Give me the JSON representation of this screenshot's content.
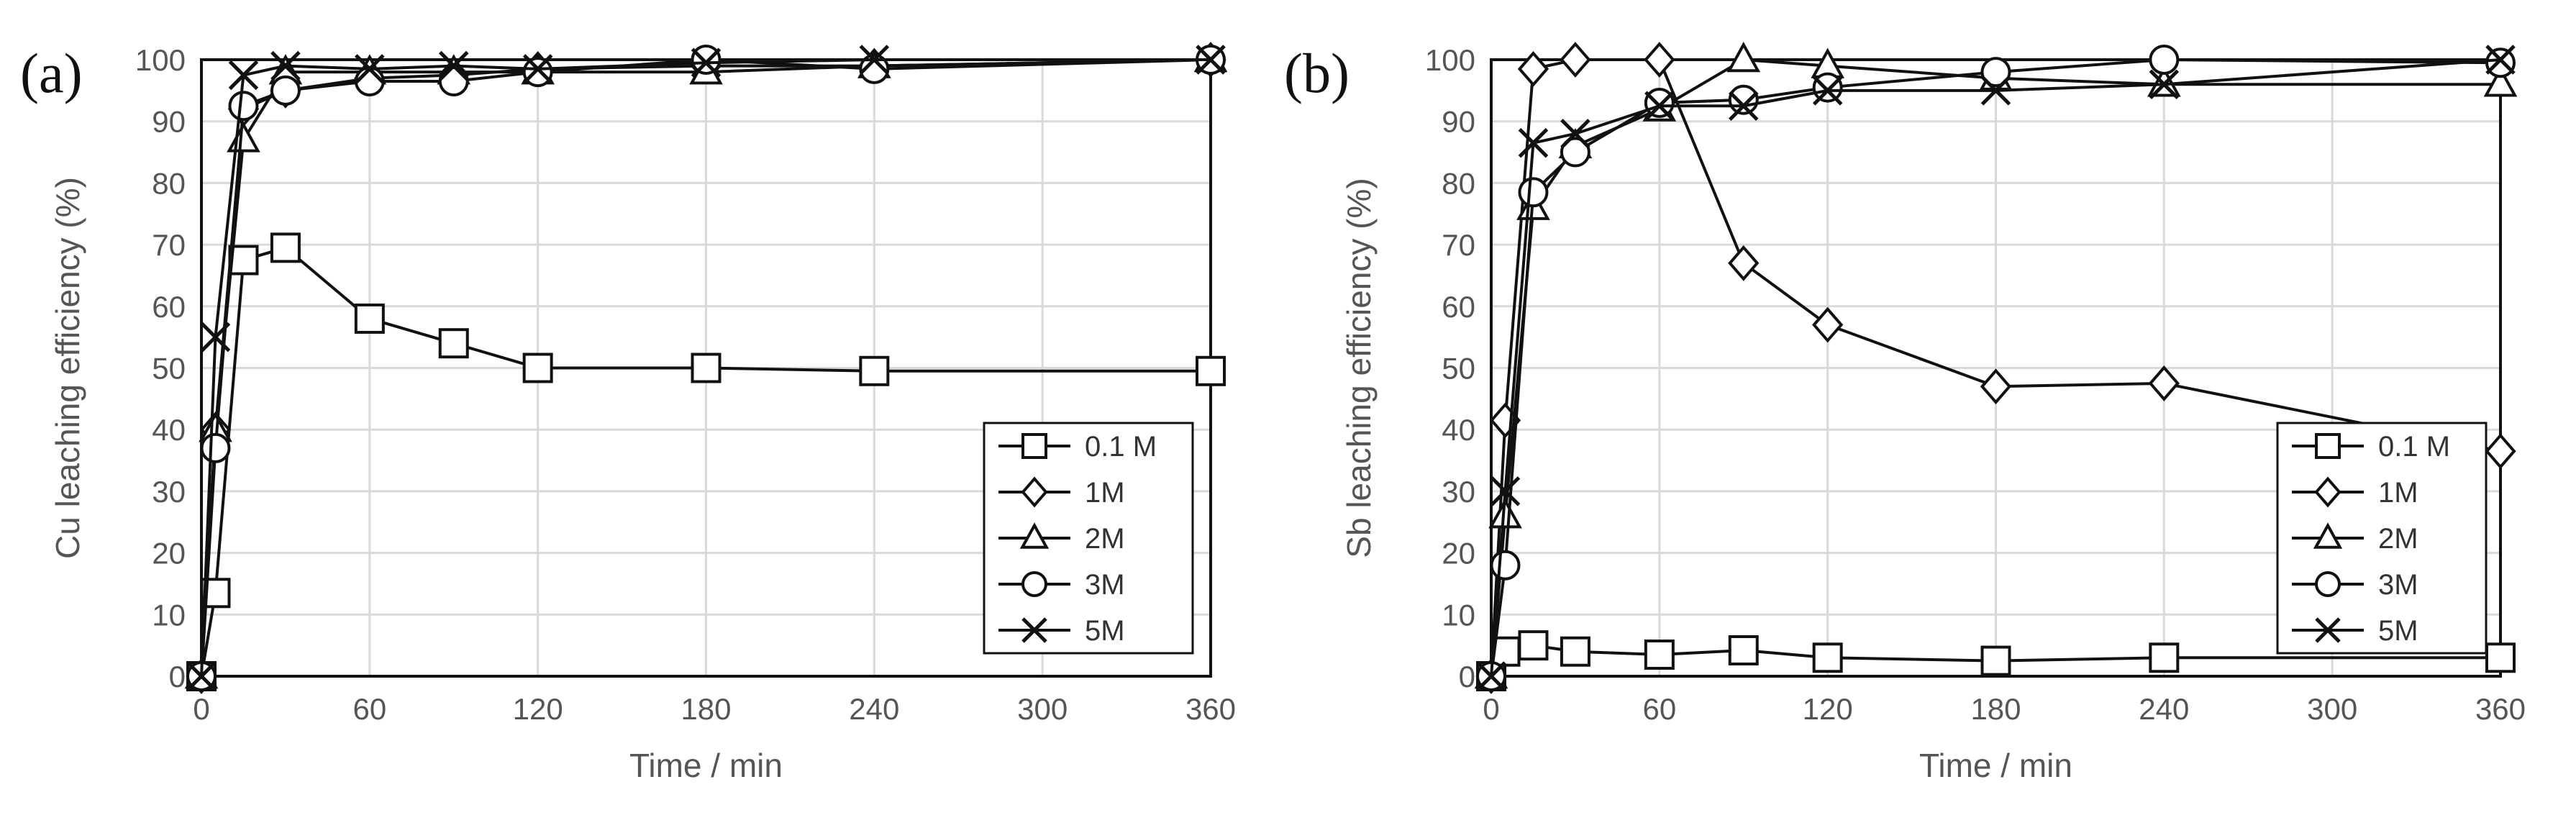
{
  "chart_data": [
    {
      "type": "line",
      "panel_label": "(a)",
      "xlabel": "Time / min",
      "ylabel": "Cu leaching efficiency (%)",
      "xlim": [
        0,
        360
      ],
      "ylim": [
        0,
        100
      ],
      "xticks": [
        0,
        60,
        120,
        180,
        240,
        300,
        360
      ],
      "yticks": [
        0,
        10,
        20,
        30,
        40,
        50,
        60,
        70,
        80,
        90,
        100
      ],
      "grid": true,
      "legend": "bottom-right",
      "series": [
        {
          "name": "0.1 M",
          "marker": "square",
          "x": [
            0,
            5,
            15,
            30,
            60,
            90,
            120,
            180,
            240,
            360
          ],
          "y": [
            0,
            13.5,
            67.5,
            69.5,
            58,
            54,
            50,
            50,
            49.5,
            49.5
          ]
        },
        {
          "name": "1M",
          "marker": "diamond",
          "x": [
            0,
            5,
            15,
            30,
            60,
            90,
            120,
            180,
            240,
            360
          ],
          "y": [
            0,
            40,
            92,
            95,
            97,
            97.5,
            98.5,
            99,
            99,
            100
          ]
        },
        {
          "name": "2M",
          "marker": "triangle",
          "x": [
            0,
            5,
            15,
            30,
            60,
            90,
            120,
            180,
            240,
            360
          ],
          "y": [
            0,
            40,
            87,
            98,
            98,
            98,
            98,
            98,
            99,
            100
          ]
        },
        {
          "name": "3M",
          "marker": "circle",
          "x": [
            0,
            5,
            15,
            30,
            60,
            90,
            120,
            180,
            240,
            360
          ],
          "y": [
            0,
            37,
            92.5,
            95,
            96.5,
            96.5,
            98,
            100,
            98.5,
            100
          ]
        },
        {
          "name": "5M",
          "marker": "x",
          "x": [
            0,
            5,
            15,
            30,
            60,
            90,
            120,
            180,
            240,
            360
          ],
          "y": [
            0,
            55,
            97.5,
            99,
            98.5,
            99,
            98.5,
            99.5,
            100,
            100
          ]
        }
      ]
    },
    {
      "type": "line",
      "panel_label": "(b)",
      "xlabel": "Time / min",
      "ylabel": "Sb leaching efficiency (%)",
      "xlim": [
        0,
        360
      ],
      "ylim": [
        0,
        100
      ],
      "xticks": [
        0,
        60,
        120,
        180,
        240,
        300,
        360
      ],
      "yticks": [
        0,
        10,
        20,
        30,
        40,
        50,
        60,
        70,
        80,
        90,
        100
      ],
      "grid": true,
      "legend": "bottom-right",
      "series": [
        {
          "name": "0.1 M",
          "marker": "square",
          "x": [
            0,
            5,
            15,
            30,
            60,
            90,
            120,
            180,
            240,
            360
          ],
          "y": [
            0,
            4,
            5,
            4,
            3.5,
            4.2,
            3,
            2.5,
            3,
            3
          ]
        },
        {
          "name": "1M",
          "marker": "diamond",
          "x": [
            0,
            5,
            15,
            30,
            60,
            90,
            120,
            180,
            240,
            360
          ],
          "y": [
            0,
            41.5,
            98.5,
            100,
            100,
            67,
            57,
            47,
            47.5,
            36.5
          ]
        },
        {
          "name": "2M",
          "marker": "triangle",
          "x": [
            0,
            5,
            15,
            30,
            60,
            90,
            120,
            180,
            240,
            360
          ],
          "y": [
            0,
            26,
            76,
            86,
            92,
            100,
            99,
            97,
            96,
            96
          ]
        },
        {
          "name": "3M",
          "marker": "circle",
          "x": [
            0,
            5,
            15,
            30,
            60,
            90,
            120,
            180,
            240,
            360
          ],
          "y": [
            0,
            18,
            78.5,
            85,
            93,
            93.5,
            95.5,
            98,
            100,
            99.5
          ]
        },
        {
          "name": "5M",
          "marker": "x",
          "x": [
            0,
            5,
            15,
            30,
            60,
            90,
            120,
            180,
            240,
            360
          ],
          "y": [
            0,
            30,
            86.5,
            88,
            92.5,
            92.5,
            95,
            95,
            96,
            100
          ]
        }
      ]
    }
  ]
}
